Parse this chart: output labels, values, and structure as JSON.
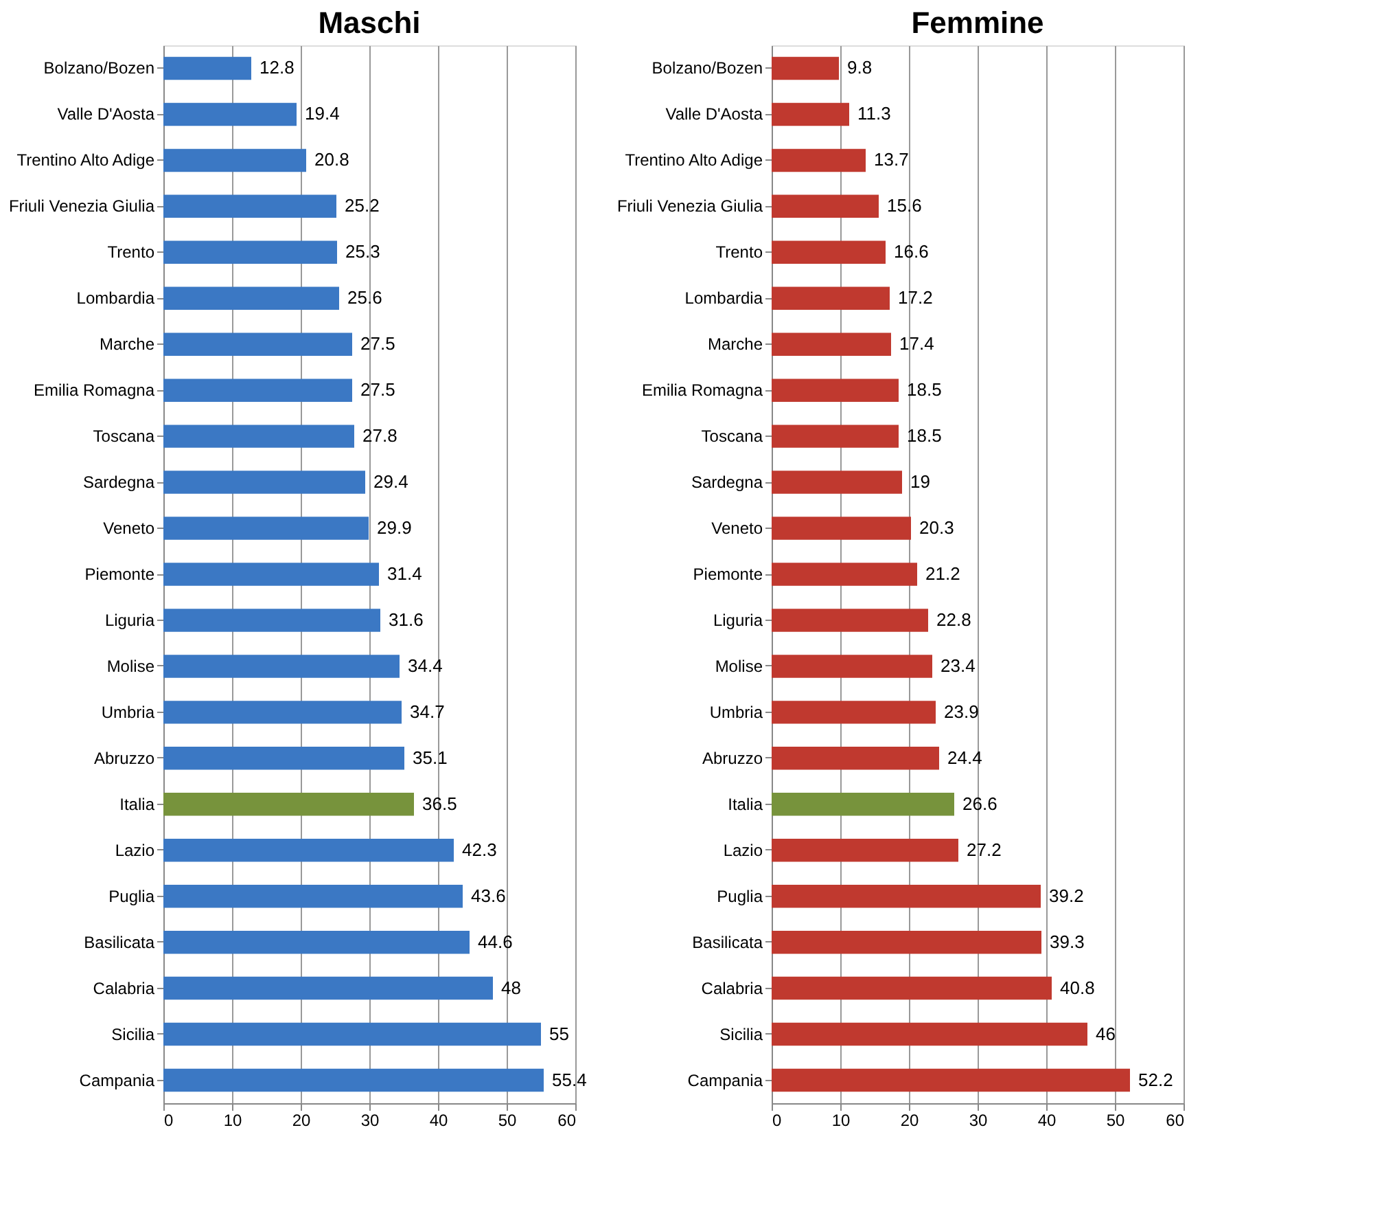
{
  "chart_data": [
    {
      "type": "bar",
      "title": "Maschi",
      "orientation": "horizontal",
      "data_labels": true,
      "grid": "x",
      "xlim": [
        0,
        60
      ],
      "xticks": [
        0,
        10,
        20,
        30,
        40,
        50,
        60
      ],
      "categories": [
        "Bolzano/Bozen",
        "Valle D'Aosta",
        "Trentino Alto Adige",
        "Friuli Venezia Giulia",
        "Trento",
        "Lombardia",
        "Marche",
        "Emilia Romagna",
        "Toscana",
        "Sardegna",
        "Veneto",
        "Piemonte",
        "Liguria",
        "Molise",
        "Umbria",
        "Abruzzo",
        "Italia",
        "Lazio",
        "Puglia",
        "Basilicata",
        "Calabria",
        "Sicilia",
        "Campania"
      ],
      "values": [
        12.8,
        19.4,
        20.8,
        25.2,
        25.3,
        25.6,
        27.5,
        27.5,
        27.8,
        29.4,
        29.9,
        31.4,
        31.6,
        34.4,
        34.7,
        35.1,
        36.5,
        42.3,
        43.6,
        44.6,
        48,
        55,
        55.4
      ],
      "colors": [
        "#3b78c4",
        "#3b78c4",
        "#3b78c4",
        "#3b78c4",
        "#3b78c4",
        "#3b78c4",
        "#3b78c4",
        "#3b78c4",
        "#3b78c4",
        "#3b78c4",
        "#3b78c4",
        "#3b78c4",
        "#3b78c4",
        "#3b78c4",
        "#3b78c4",
        "#3b78c4",
        "#77933c",
        "#3b78c4",
        "#3b78c4",
        "#3b78c4",
        "#3b78c4",
        "#3b78c4",
        "#3b78c4"
      ]
    },
    {
      "type": "bar",
      "title": "Femmine",
      "orientation": "horizontal",
      "data_labels": true,
      "grid": "x",
      "xlim": [
        0,
        60
      ],
      "xticks": [
        0,
        10,
        20,
        30,
        40,
        50,
        60
      ],
      "categories": [
        "Bolzano/Bozen",
        "Valle D'Aosta",
        "Trentino Alto Adige",
        "Friuli Venezia Giulia",
        "Trento",
        "Lombardia",
        "Marche",
        "Emilia Romagna",
        "Toscana",
        "Sardegna",
        "Veneto",
        "Piemonte",
        "Liguria",
        "Molise",
        "Umbria",
        "Abruzzo",
        "Italia",
        "Lazio",
        "Puglia",
        "Basilicata",
        "Calabria",
        "Sicilia",
        "Campania"
      ],
      "values": [
        9.8,
        11.3,
        13.7,
        15.6,
        16.6,
        17.2,
        17.4,
        18.5,
        18.5,
        19,
        20.3,
        21.2,
        22.8,
        23.4,
        23.9,
        24.4,
        26.6,
        27.2,
        39.2,
        39.3,
        40.8,
        46,
        52.2
      ],
      "colors": [
        "#c0392f",
        "#c0392f",
        "#c0392f",
        "#c0392f",
        "#c0392f",
        "#c0392f",
        "#c0392f",
        "#c0392f",
        "#c0392f",
        "#c0392f",
        "#c0392f",
        "#c0392f",
        "#c0392f",
        "#c0392f",
        "#c0392f",
        "#c0392f",
        "#77933c",
        "#c0392f",
        "#c0392f",
        "#c0392f",
        "#c0392f",
        "#c0392f",
        "#c0392f"
      ]
    }
  ]
}
